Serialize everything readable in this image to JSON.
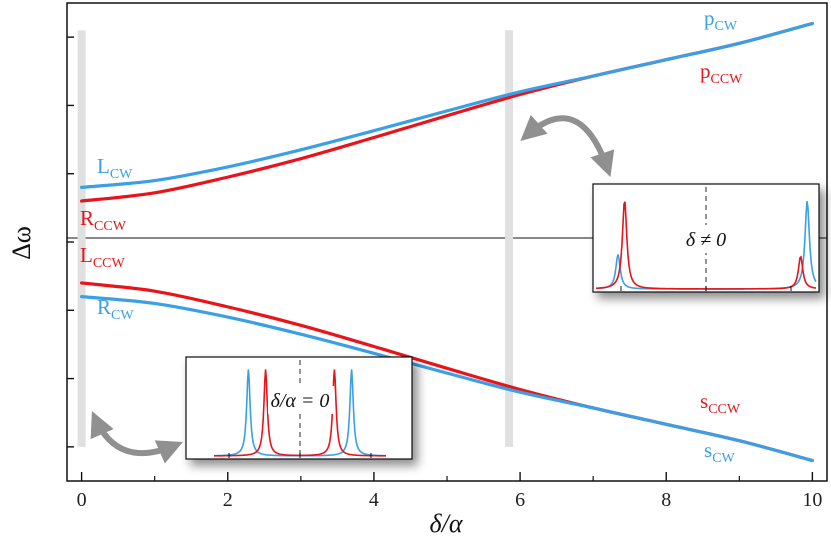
{
  "chart_data": {
    "type": "line",
    "xlabel": "δ/α",
    "ylabel": "Δω",
    "xlim": [
      -0.2,
      10.2
    ],
    "ylim": [
      -3.5,
      3.5
    ],
    "x_ticks": [
      0,
      2,
      4,
      6,
      8,
      10
    ],
    "y_ticks": [
      -3,
      -2,
      -1,
      0,
      1,
      2,
      3
    ],
    "grid": false,
    "colors": {
      "cw": "#3a9fe5",
      "ccw": "#e8141a",
      "marker": "#e0e0e0",
      "arrow": "#909090"
    },
    "vertical_markers": [
      0,
      5.85
    ],
    "series": [
      {
        "label_main": "p",
        "label_sub": "CW",
        "color": "cw",
        "x": [
          0,
          1,
          2,
          3,
          4,
          5,
          6,
          7,
          8,
          9,
          10
        ],
        "y": [
          0.8,
          0.9,
          1.1,
          1.35,
          1.63,
          1.92,
          2.2,
          2.43,
          2.67,
          2.91,
          3.2
        ]
      },
      {
        "label_main": "p",
        "label_sub": "CCW",
        "color": "ccw",
        "x": [
          0,
          1,
          2,
          3,
          4,
          5,
          6,
          7,
          8,
          9,
          10
        ],
        "y": [
          0.6,
          0.72,
          0.95,
          1.22,
          1.53,
          1.85,
          2.16,
          2.43,
          2.67,
          2.91,
          3.2
        ]
      },
      {
        "label_main": "L",
        "label_sub": "CW",
        "color": "cw"
      },
      {
        "label_main": "R",
        "label_sub": "CCW",
        "color": "ccw"
      },
      {
        "label_main": "L",
        "label_sub": "CCW",
        "color": "ccw"
      },
      {
        "label_main": "R",
        "label_sub": "CW",
        "color": "cw"
      },
      {
        "label_main": "s",
        "label_sub": "CCW",
        "color": "ccw",
        "x": [
          0,
          1,
          2,
          3,
          4,
          5,
          6,
          7,
          8,
          9,
          10
        ],
        "y": [
          -0.6,
          -0.72,
          -0.95,
          -1.22,
          -1.53,
          -1.85,
          -2.16,
          -2.43,
          -2.67,
          -2.91,
          -3.2
        ]
      },
      {
        "label_main": "s",
        "label_sub": "CW",
        "color": "cw",
        "x": [
          0,
          1,
          2,
          3,
          4,
          5,
          6,
          7,
          8,
          9,
          10
        ],
        "y": [
          -0.8,
          -0.9,
          -1.1,
          -1.35,
          -1.63,
          -1.92,
          -2.2,
          -2.43,
          -2.67,
          -2.91,
          -3.2
        ]
      }
    ],
    "insets": [
      {
        "label": "δ/α = 0",
        "cw_peaks": [
          0.2,
          0.8
        ],
        "ccw_peaks": [
          0.3,
          0.7
        ],
        "peak_heights": {
          "cw": 1.0,
          "ccw": 1.0
        }
      },
      {
        "label": "δ ≠ 0",
        "cw_peaks": [
          0.1,
          0.96
        ],
        "ccw_peaks": [
          0.13,
          0.93
        ],
        "peak_heights": {
          "cw_left": 0.38,
          "ccw_left": 0.98,
          "cw_right": 0.97,
          "ccw_right": 0.36
        }
      }
    ]
  }
}
